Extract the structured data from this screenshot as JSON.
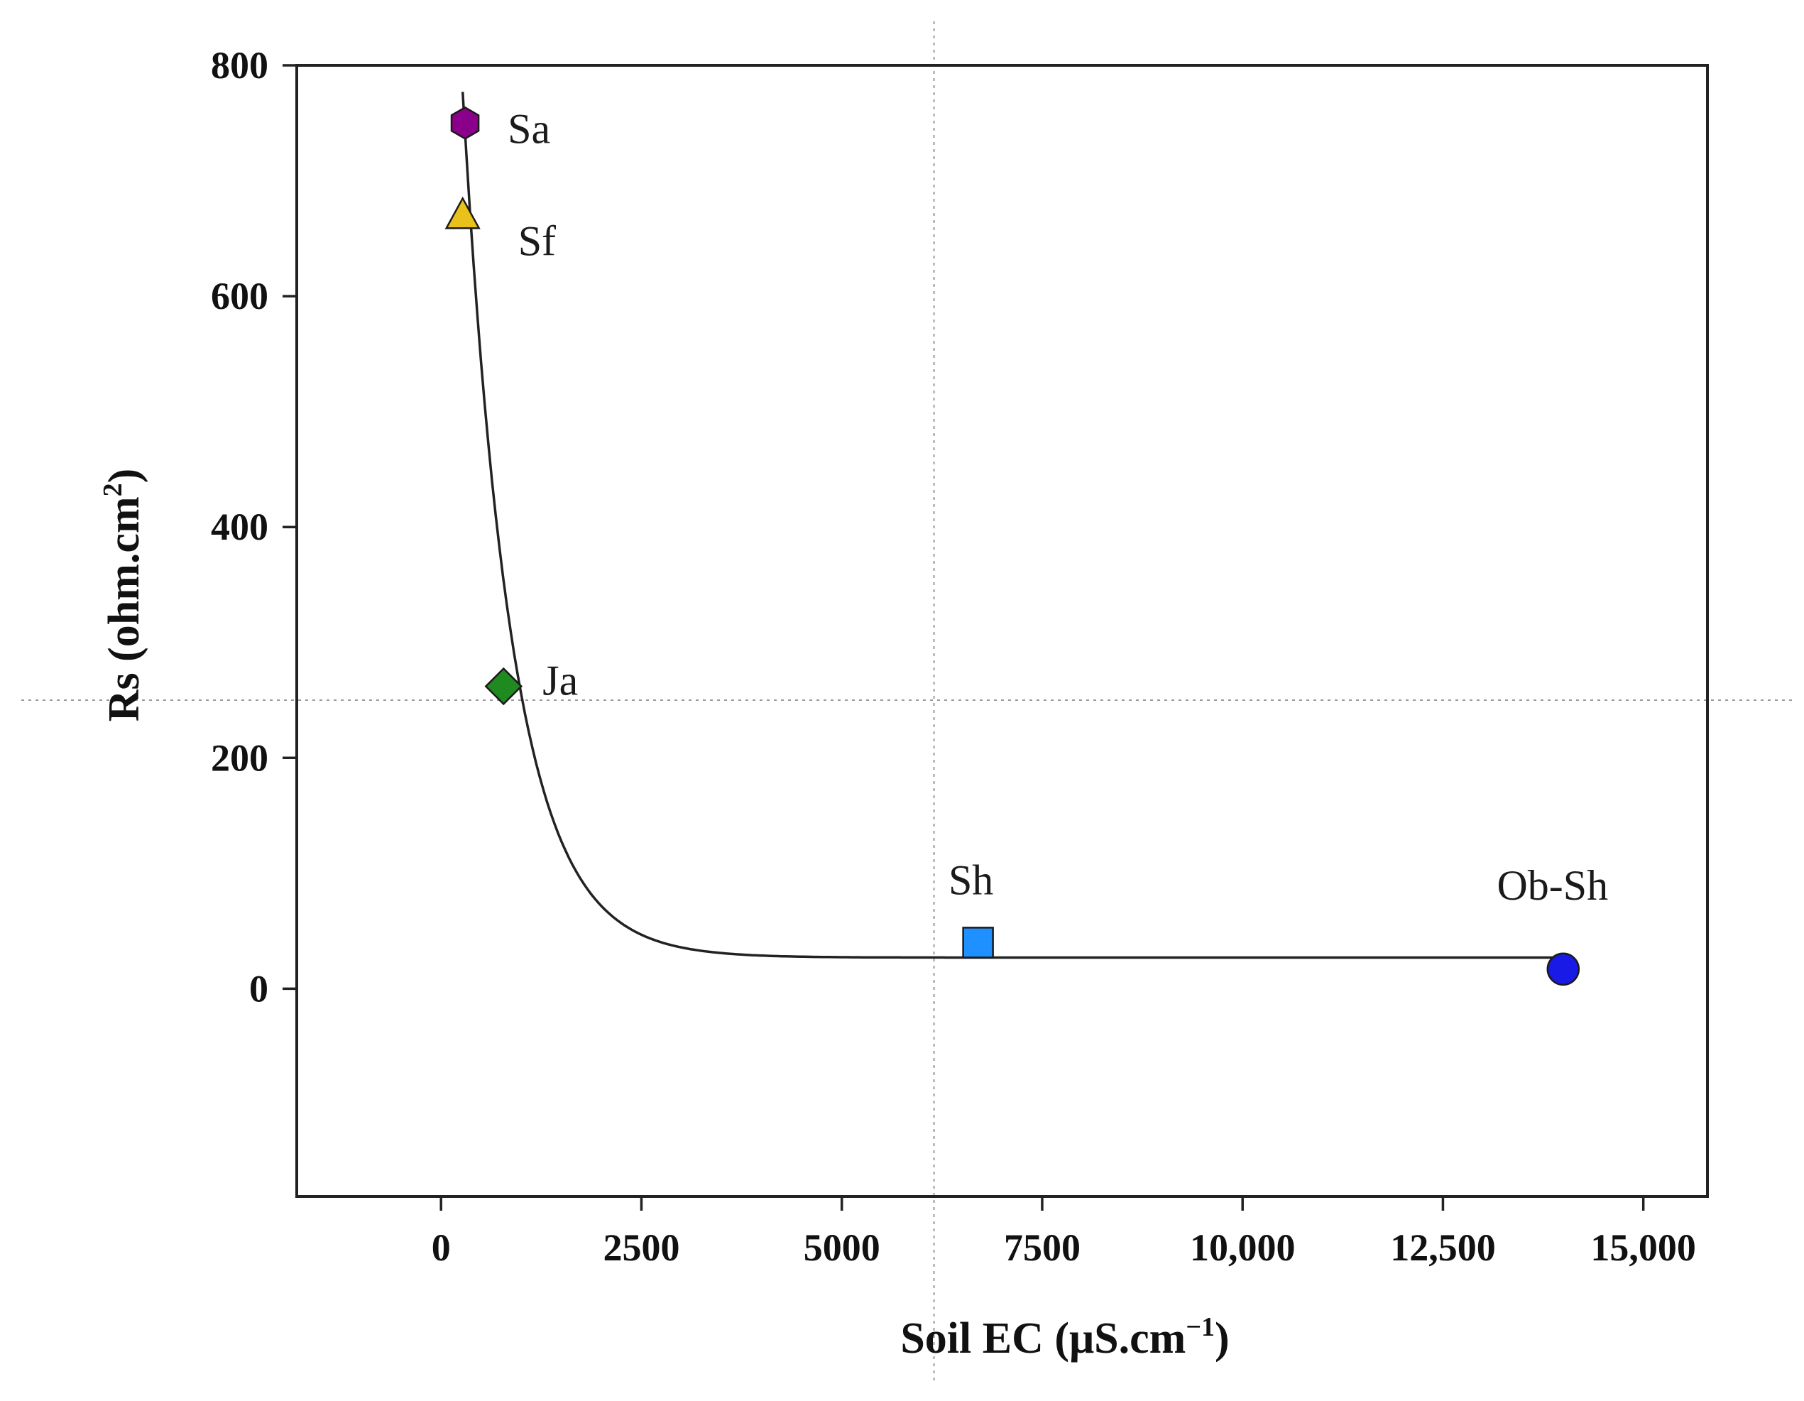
{
  "chart_data": {
    "type": "scatter",
    "xlabel": "Soil EC (μS.cm",
    "xlabel_sup": "−1",
    "xlabel_close": ")",
    "ylabel": "Rs (ohm.cm",
    "ylabel_sup": "2",
    "ylabel_close": ")",
    "xlim": [
      -1800,
      15800
    ],
    "ylim": [
      -180,
      800
    ],
    "x_ticks": [
      {
        "value": 0,
        "label": "0"
      },
      {
        "value": 2500,
        "label": "2500"
      },
      {
        "value": 5000,
        "label": "5000"
      },
      {
        "value": 7500,
        "label": "7500"
      },
      {
        "value": 10000,
        "label": "10,000"
      },
      {
        "value": 12500,
        "label": "12,500"
      },
      {
        "value": 15000,
        "label": "15,000"
      }
    ],
    "y_ticks": [
      {
        "value": 0,
        "label": "0"
      },
      {
        "value": 200,
        "label": "200"
      },
      {
        "value": 400,
        "label": "400"
      },
      {
        "value": 600,
        "label": "600"
      },
      {
        "value": 800,
        "label": "800"
      }
    ],
    "crosshair": {
      "x": 6150,
      "y": 250
    },
    "points": [
      {
        "label": "Sa",
        "x": 300,
        "y": 750,
        "marker": "hexagon",
        "color": "#8B008B"
      },
      {
        "label": "Sf",
        "x": 270,
        "y": 670,
        "marker": "triangle",
        "color": "#E8C21A"
      },
      {
        "label": "Ja",
        "x": 780,
        "y": 262,
        "marker": "diamond",
        "color": "#1F8A1F"
      },
      {
        "label": "Sh",
        "x": 6700,
        "y": 40,
        "marker": "square",
        "color": "#1E90FF"
      },
      {
        "label": "Ob-Sh",
        "x": 14000,
        "y": 17,
        "marker": "circle",
        "color": "#1A1AE6"
      }
    ],
    "fit_curve": {
      "type": "exponential-decay",
      "y0": 27,
      "amplitude": 750,
      "decay_rate": 0.00163,
      "x_shift": 270,
      "x_range": [
        270,
        14000
      ]
    }
  }
}
